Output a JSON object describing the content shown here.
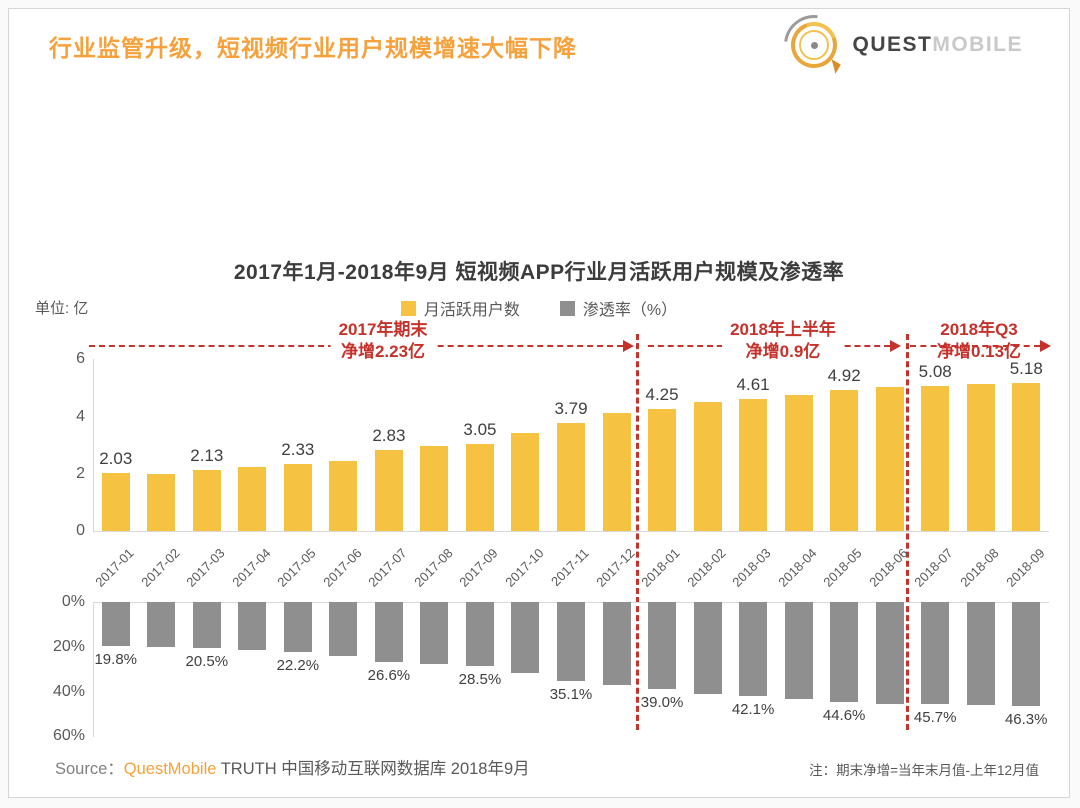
{
  "header": {
    "title": "行业监管升级，短视频行业用户规模增速大幅下降"
  },
  "logo": {
    "quest": "QUEST",
    "mobile": "MOBILE"
  },
  "chart": {
    "unit_label": "单位: 亿"
  },
  "chart_data": {
    "type": "bar",
    "title": "2017年1月-2018年9月 短视频APP行业月活跃用户规模及渗透率",
    "categories": [
      "2017-01",
      "2017-02",
      "2017-03",
      "2017-04",
      "2017-05",
      "2017-06",
      "2017-07",
      "2017-08",
      "2017-09",
      "2017-10",
      "2017-11",
      "2017-12",
      "2018-01",
      "2018-02",
      "2018-03",
      "2018-04",
      "2018-05",
      "2018-06",
      "2018-07",
      "2018-08",
      "2018-09"
    ],
    "series": [
      {
        "name": "月活跃用户数",
        "unit": "亿",
        "axis": "top",
        "color": "#F6C242",
        "ylim": [
          0,
          6
        ],
        "yticks": [
          6,
          4,
          2,
          0
        ],
        "label_every": 2,
        "values": [
          2.03,
          1.98,
          2.13,
          2.24,
          2.33,
          2.46,
          2.83,
          2.96,
          3.05,
          3.42,
          3.79,
          4.12,
          4.25,
          4.5,
          4.61,
          4.74,
          4.92,
          5.05,
          5.08,
          5.13,
          5.18
        ]
      },
      {
        "name": "渗透率（%）",
        "unit": "%",
        "axis": "bottom",
        "inverted": true,
        "color": "#8F8F8F",
        "ylim": [
          0,
          60
        ],
        "yticks": [
          "0%",
          "20%",
          "40%",
          "60%"
        ],
        "label_every": 2,
        "values": [
          19.8,
          20.0,
          20.5,
          21.5,
          22.2,
          24.2,
          26.6,
          27.8,
          28.5,
          31.8,
          35.1,
          37.0,
          39.0,
          41.0,
          42.1,
          43.5,
          44.6,
          45.4,
          45.7,
          46.0,
          46.3
        ]
      }
    ],
    "legend_position": "top-center",
    "grid": false,
    "annotations": [
      {
        "line1": "2017年期末",
        "line2": "净增2.23亿"
      },
      {
        "line1": "2018年上半年",
        "line2": "净增0.9亿"
      },
      {
        "line1": "2018年Q3",
        "line2": "净增0.13亿"
      }
    ]
  },
  "footer": {
    "source_prefix": "Source：",
    "source_brand": "QuestMobile",
    "source_rest": " TRUTH 中国移动互联网数据库 2018年9月",
    "note": "注：期末净增=当年末月值-上年12月值"
  },
  "colors": {
    "accent_orange": "#F6A13C",
    "bar_yellow": "#F6C242",
    "bar_gray": "#8F8F8F",
    "annotation_red": "#C5312B"
  }
}
